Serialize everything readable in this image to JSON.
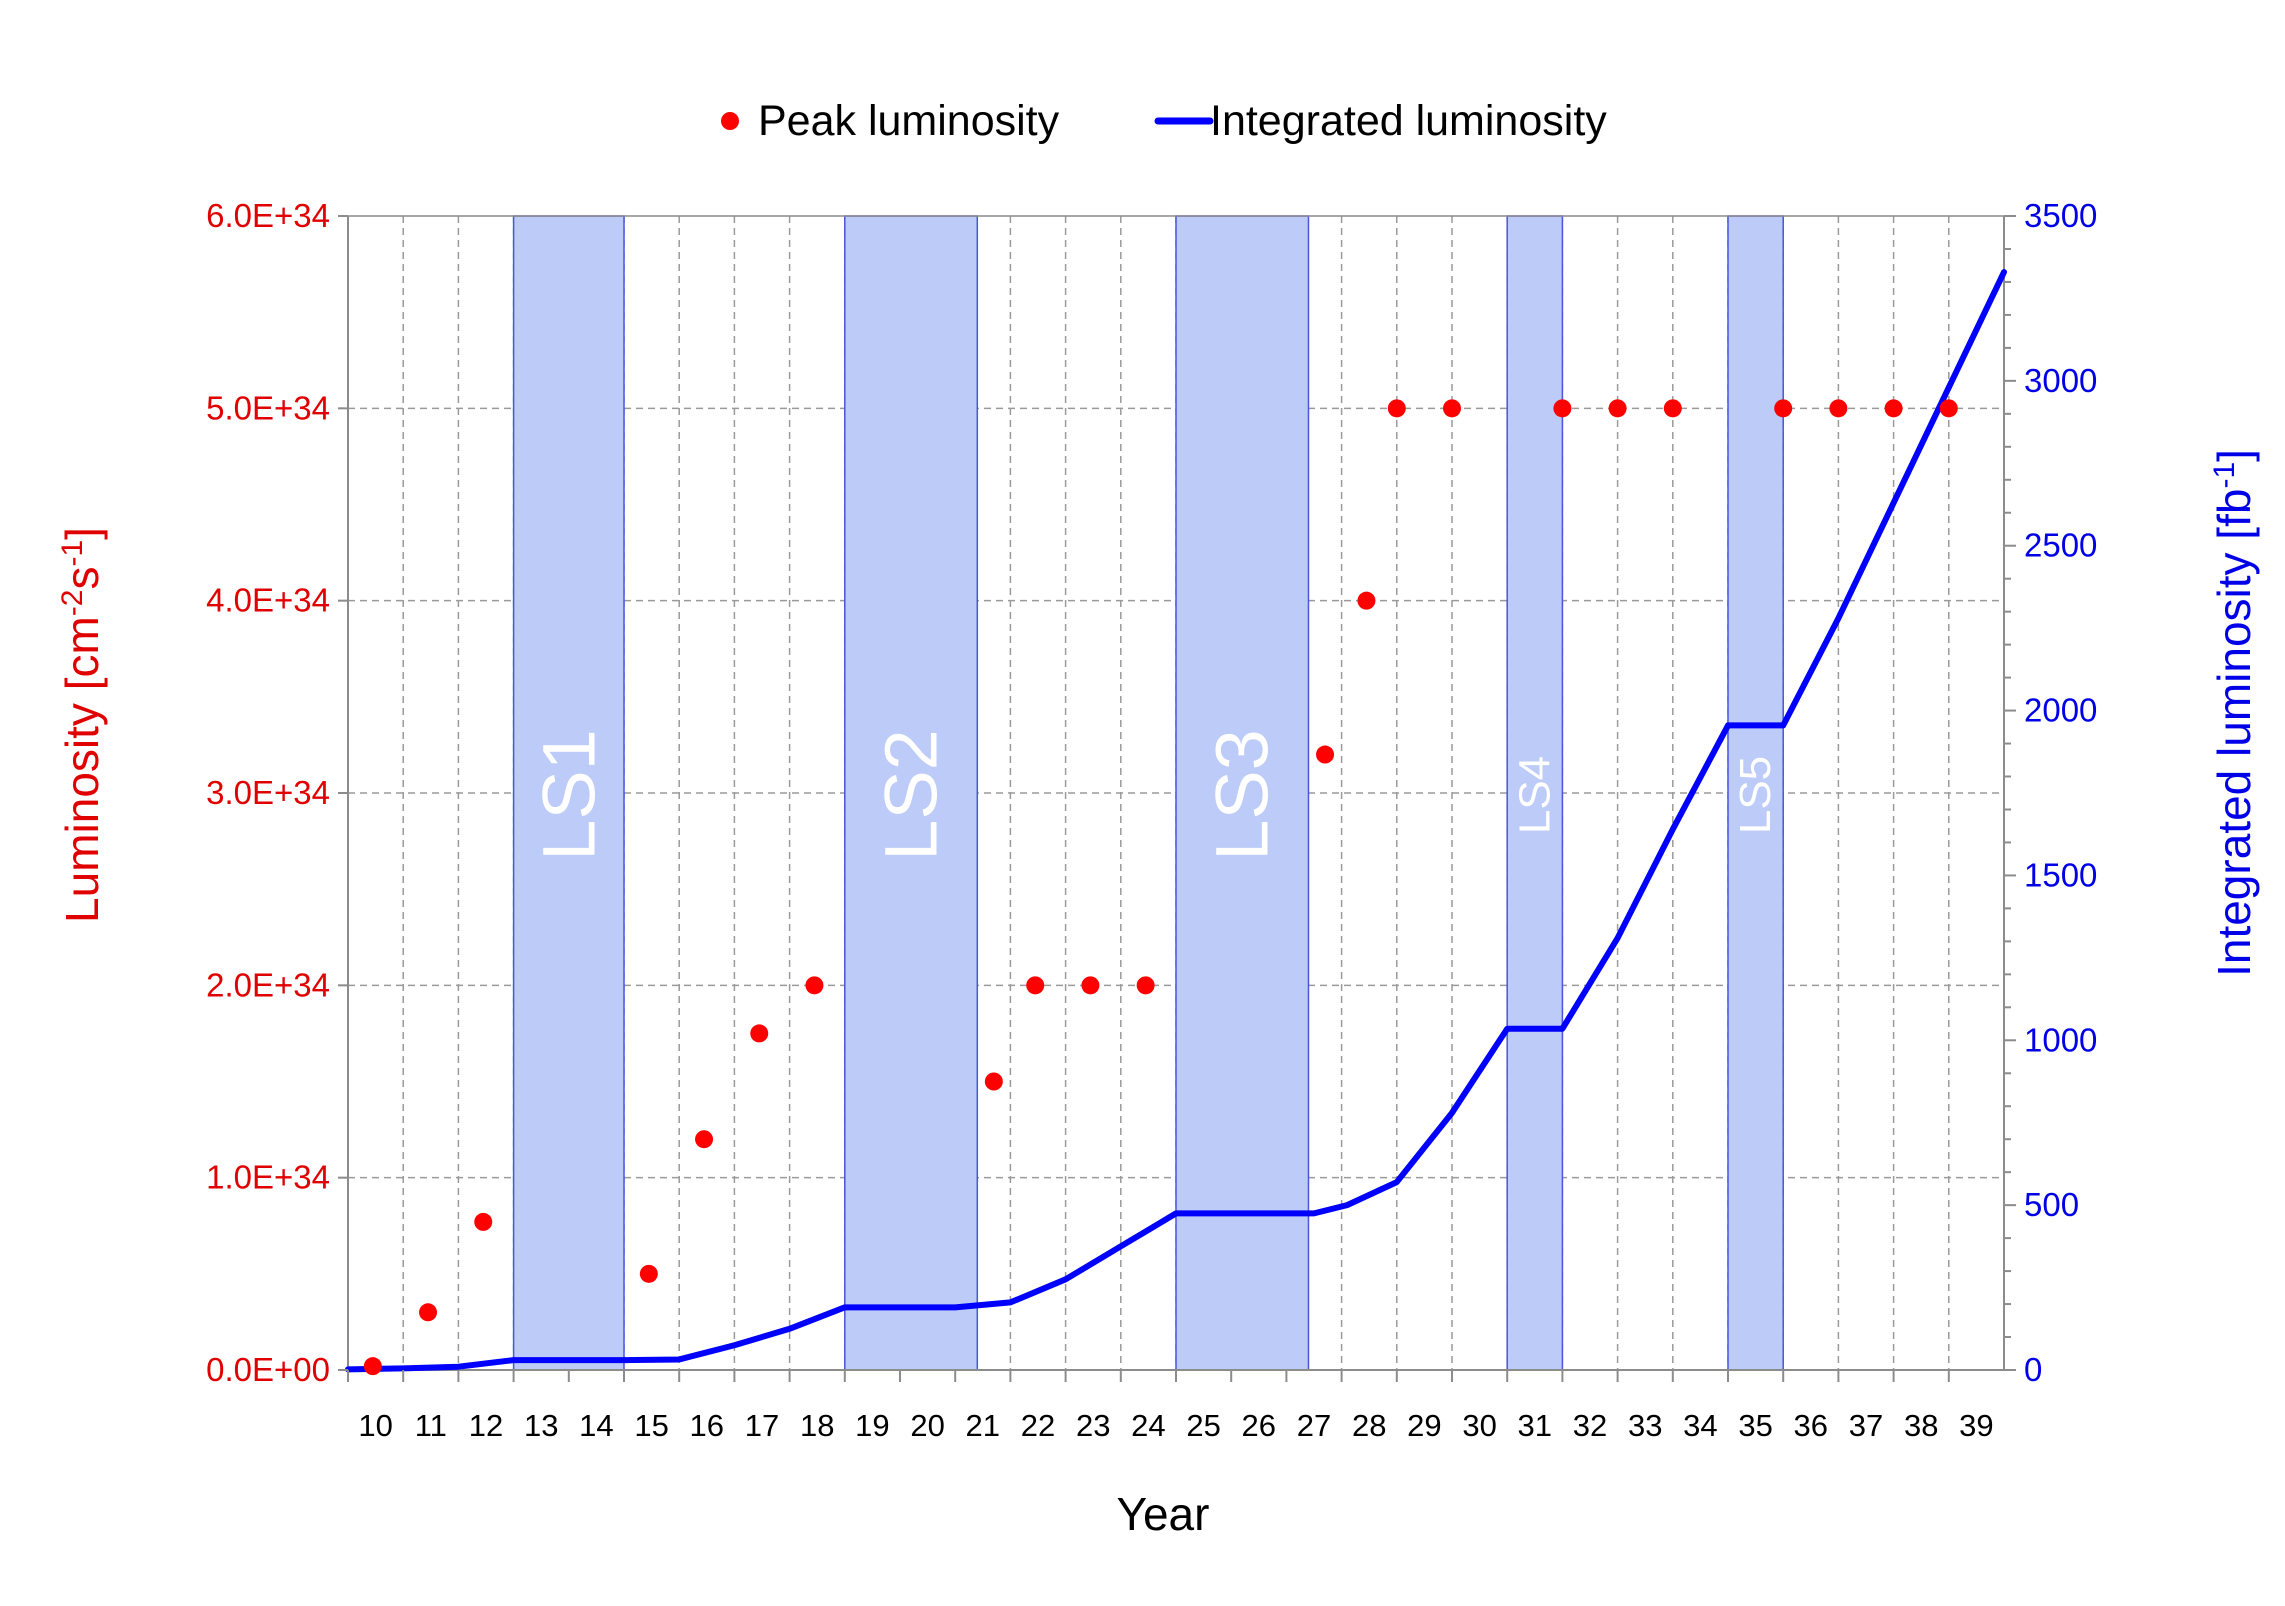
{
  "chart_data": {
    "type": "line",
    "legend": {
      "placement": "top-center",
      "entries": [
        {
          "name": "Peak luminosity",
          "marker": "dot",
          "color": "#ff0000"
        },
        {
          "name": "Integrated luminosity",
          "marker": "line",
          "color": "#0000ff"
        }
      ]
    },
    "xlabel": "Year",
    "ylabel_left": {
      "prefix": "Luminosity [cm",
      "sup1": "-2",
      "mid": "s",
      "sup2": "-1",
      "suffix": "]"
    },
    "ylabel_right": {
      "prefix": "Integrated luminosity [fb",
      "sup1": "-1",
      "suffix": "]"
    },
    "x_ticks": [
      "10",
      "11",
      "12",
      "13",
      "14",
      "15",
      "16",
      "17",
      "18",
      "19",
      "20",
      "21",
      "22",
      "23",
      "24",
      "25",
      "26",
      "27",
      "28",
      "29",
      "30",
      "31",
      "32",
      "33",
      "34",
      "35",
      "36",
      "37",
      "38",
      "39"
    ],
    "x_range": [
      9.5,
      39.5
    ],
    "y_left": {
      "range": [
        0,
        6e+34
      ],
      "ticks": [
        0,
        1e+34,
        2e+34,
        3e+34,
        4e+34,
        5e+34,
        6e+34
      ],
      "tick_labels": [
        "0.0E+00",
        "1.0E+34",
        "2.0E+34",
        "3.0E+34",
        "4.0E+34",
        "5.0E+34",
        "6.0E+34"
      ]
    },
    "y_right": {
      "range": [
        0,
        3500
      ],
      "ticks": [
        0,
        500,
        1000,
        1500,
        2000,
        2500,
        3000,
        3500
      ],
      "tick_labels": [
        "0",
        "500",
        "1000",
        "1500",
        "2000",
        "2500",
        "3000",
        "3500"
      ]
    },
    "grid": true,
    "series": [
      {
        "name": "Peak luminosity",
        "axis": "left",
        "style": "scatter",
        "color": "#ff0000",
        "points": [
          [
            9.95,
            2e+32
          ],
          [
            10.95,
            3e+33
          ],
          [
            11.95,
            7.7e+33
          ],
          [
            14.95,
            5e+33
          ],
          [
            15.95,
            1.2e+34
          ],
          [
            16.95,
            1.75e+34
          ],
          [
            17.95,
            2e+34
          ],
          [
            21.2,
            1.5e+34
          ],
          [
            21.95,
            2e+34
          ],
          [
            22.95,
            2e+34
          ],
          [
            23.95,
            2e+34
          ],
          [
            27.2,
            3.2e+34
          ],
          [
            27.95,
            4e+34
          ],
          [
            28.5,
            5e+34
          ],
          [
            29.5,
            5e+34
          ],
          [
            31.5,
            5e+34
          ],
          [
            32.5,
            5e+34
          ],
          [
            33.5,
            5e+34
          ],
          [
            35.5,
            5e+34
          ],
          [
            36.5,
            5e+34
          ],
          [
            37.5,
            5e+34
          ],
          [
            38.5,
            5e+34
          ]
        ]
      },
      {
        "name": "Integrated luminosity",
        "axis": "right",
        "style": "line",
        "color": "#0000ff",
        "points": [
          [
            9.5,
            2
          ],
          [
            10.5,
            5
          ],
          [
            11.5,
            10
          ],
          [
            12.5,
            30
          ],
          [
            13.5,
            30
          ],
          [
            14.5,
            30
          ],
          [
            15.5,
            32
          ],
          [
            16.5,
            75
          ],
          [
            17.5,
            125
          ],
          [
            18.5,
            190
          ],
          [
            19.5,
            190
          ],
          [
            20.5,
            190
          ],
          [
            21.5,
            205
          ],
          [
            22.5,
            275
          ],
          [
            23.5,
            375
          ],
          [
            24.5,
            475
          ],
          [
            25.5,
            475
          ],
          [
            26.5,
            475
          ],
          [
            27.0,
            475
          ],
          [
            27.6,
            500
          ],
          [
            28.5,
            570
          ],
          [
            29.5,
            780
          ],
          [
            30.5,
            1035
          ],
          [
            31.5,
            1035
          ],
          [
            32.5,
            1310
          ],
          [
            33.5,
            1640
          ],
          [
            34.5,
            1955
          ],
          [
            35.5,
            1955
          ],
          [
            36.5,
            2280
          ],
          [
            37.5,
            2630
          ],
          [
            38.5,
            2980
          ],
          [
            39.5,
            3330
          ]
        ]
      }
    ],
    "shutdowns": [
      {
        "label": "LS1",
        "x_start": 12.5,
        "x_end": 14.5,
        "size": "large"
      },
      {
        "label": "LS2",
        "x_start": 18.5,
        "x_end": 20.9,
        "size": "large"
      },
      {
        "label": "LS3",
        "x_start": 24.5,
        "x_end": 26.9,
        "size": "large"
      },
      {
        "label": "LS4",
        "x_start": 30.5,
        "x_end": 31.5,
        "size": "small"
      },
      {
        "label": "LS5",
        "x_start": 34.5,
        "x_end": 35.5,
        "size": "small"
      }
    ],
    "colors": {
      "shade_fill": "#bccbf7",
      "shade_stroke": "#4a55e0",
      "left_axis": "#e00000",
      "right_axis": "#0000e8",
      "grid": "#9a9a9a"
    }
  }
}
